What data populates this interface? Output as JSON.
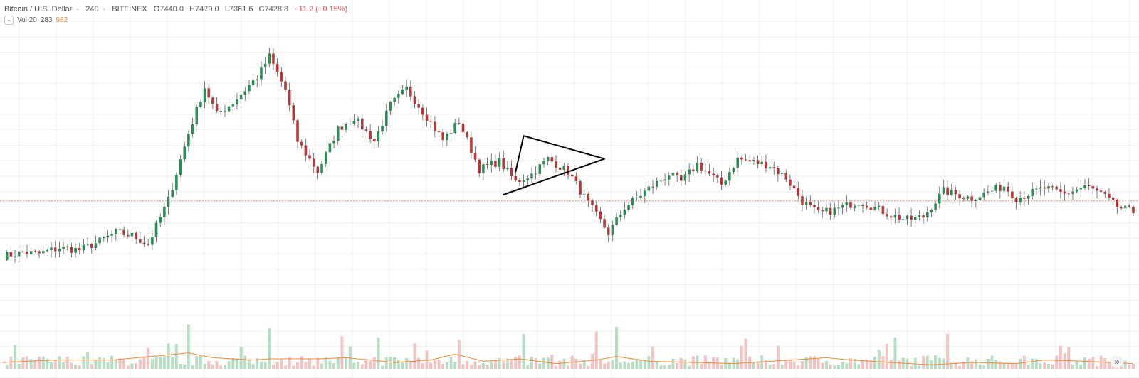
{
  "legend": {
    "symbol": "Bitcoin / U.S. Dollar",
    "interval": "240",
    "exchange": "BITFINEX",
    "open": "O7440.0",
    "high": "H7479.0",
    "low": "L7361.6",
    "close": "C7428.8",
    "change": "−11.2 (−0.15%)"
  },
  "volume_legend": {
    "collapse_icon": "chevron-down-icon",
    "collapse_glyph": "⌄",
    "label": "Vol 20",
    "volume": "283",
    "ma": "982"
  },
  "scroll_button": {
    "icon": "double-chevron-right-icon",
    "glyph": "»"
  },
  "colors": {
    "up": "#2e8b57",
    "down": "#b23a3a",
    "wick": "#5a5a5a",
    "grid": "#eeeeee",
    "price_line": "#f07b5a",
    "volume_up": "#b9dcc4",
    "volume_down": "#f2c3c3",
    "volume_ma": "#ef8a3a",
    "drawing": "#000000"
  },
  "chart_data": {
    "type": "candlestick",
    "title": "Bitcoin / U.S. Dollar · 240 · BITFINEX",
    "last_bar": {
      "open": 7440.0,
      "high": 7479.0,
      "low": 7361.6,
      "close": 7428.8,
      "volume": 283,
      "volume_ma": 982
    },
    "price_path": [
      [
        0,
        6350
      ],
      [
        5,
        6420
      ],
      [
        9,
        6400
      ],
      [
        14,
        6510
      ],
      [
        19,
        6470
      ],
      [
        23,
        6600
      ],
      [
        28,
        6810
      ],
      [
        32,
        6750
      ],
      [
        36,
        6580
      ],
      [
        41,
        7450
      ],
      [
        46,
        8750
      ],
      [
        50,
        9650
      ],
      [
        53,
        9120
      ],
      [
        57,
        9350
      ],
      [
        63,
        9850
      ],
      [
        66,
        10250
      ],
      [
        70,
        9600
      ],
      [
        73,
        8600
      ],
      [
        78,
        8000
      ],
      [
        83,
        8830
      ],
      [
        87,
        9050
      ],
      [
        92,
        8600
      ],
      [
        96,
        9300
      ],
      [
        100,
        9620
      ],
      [
        104,
        9180
      ],
      [
        109,
        8620
      ],
      [
        113,
        8980
      ],
      [
        118,
        8050
      ],
      [
        123,
        8200
      ],
      [
        127,
        7800
      ],
      [
        131,
        7950
      ],
      [
        135,
        8250
      ],
      [
        140,
        8000
      ],
      [
        145,
        7380
      ],
      [
        150,
        6800
      ],
      [
        154,
        7300
      ],
      [
        160,
        7670
      ],
      [
        165,
        7950
      ],
      [
        168,
        7800
      ],
      [
        172,
        8150
      ],
      [
        178,
        7750
      ],
      [
        182,
        8250
      ],
      [
        190,
        8120
      ],
      [
        194,
        7880
      ],
      [
        198,
        7420
      ],
      [
        202,
        7180
      ],
      [
        206,
        7250
      ],
      [
        212,
        7420
      ],
      [
        215,
        7330
      ],
      [
        220,
        7150
      ],
      [
        224,
        7060
      ],
      [
        228,
        7120
      ],
      [
        233,
        7620
      ],
      [
        240,
        7480
      ],
      [
        248,
        7720
      ],
      [
        251,
        7480
      ],
      [
        258,
        7680
      ],
      [
        263,
        7560
      ],
      [
        268,
        7720
      ],
      [
        272,
        7570
      ],
      [
        276,
        7310
      ],
      [
        280,
        7210
      ]
    ],
    "volume_ma_path": [
      [
        0,
        6
      ],
      [
        13,
        8
      ],
      [
        27,
        8
      ],
      [
        40,
        12
      ],
      [
        46,
        14
      ],
      [
        52,
        10
      ],
      [
        62,
        8
      ],
      [
        66,
        9
      ],
      [
        78,
        9
      ],
      [
        85,
        10
      ],
      [
        97,
        6
      ],
      [
        106,
        8
      ],
      [
        112,
        13
      ],
      [
        119,
        7
      ],
      [
        128,
        9
      ],
      [
        137,
        5
      ],
      [
        147,
        8
      ],
      [
        152,
        11
      ],
      [
        160,
        7
      ],
      [
        171,
        6
      ],
      [
        181,
        5
      ],
      [
        195,
        8
      ],
      [
        204,
        10
      ],
      [
        210,
        8
      ],
      [
        220,
        6
      ],
      [
        230,
        4
      ],
      [
        240,
        6
      ],
      [
        251,
        5
      ],
      [
        258,
        8
      ],
      [
        268,
        7
      ],
      [
        280,
        5
      ]
    ],
    "volume_spikes": [
      [
        36,
        18
      ],
      [
        41,
        22
      ],
      [
        46,
        38
      ],
      [
        66,
        35
      ],
      [
        84,
        28
      ],
      [
        93,
        27
      ],
      [
        102,
        22
      ],
      [
        113,
        25
      ],
      [
        129,
        30
      ],
      [
        147,
        32
      ],
      [
        152,
        36
      ],
      [
        184,
        26
      ],
      [
        192,
        20
      ],
      [
        221,
        27
      ],
      [
        234,
        30
      ],
      [
        262,
        20
      ]
    ],
    "current_price_line": 7428.8,
    "triangle_pattern": {
      "upper_line": [
        [
          129,
          8700
        ],
        [
          149,
          8250
        ]
      ],
      "lower_line": [
        [
          124,
          7550
        ],
        [
          149,
          8250
        ]
      ],
      "closing_line": [
        [
          127,
          8000
        ],
        [
          129,
          8700
        ]
      ]
    },
    "ylim": [
      5800,
      10800
    ],
    "volume_max": 60,
    "grid": true,
    "n_bars": 280
  }
}
